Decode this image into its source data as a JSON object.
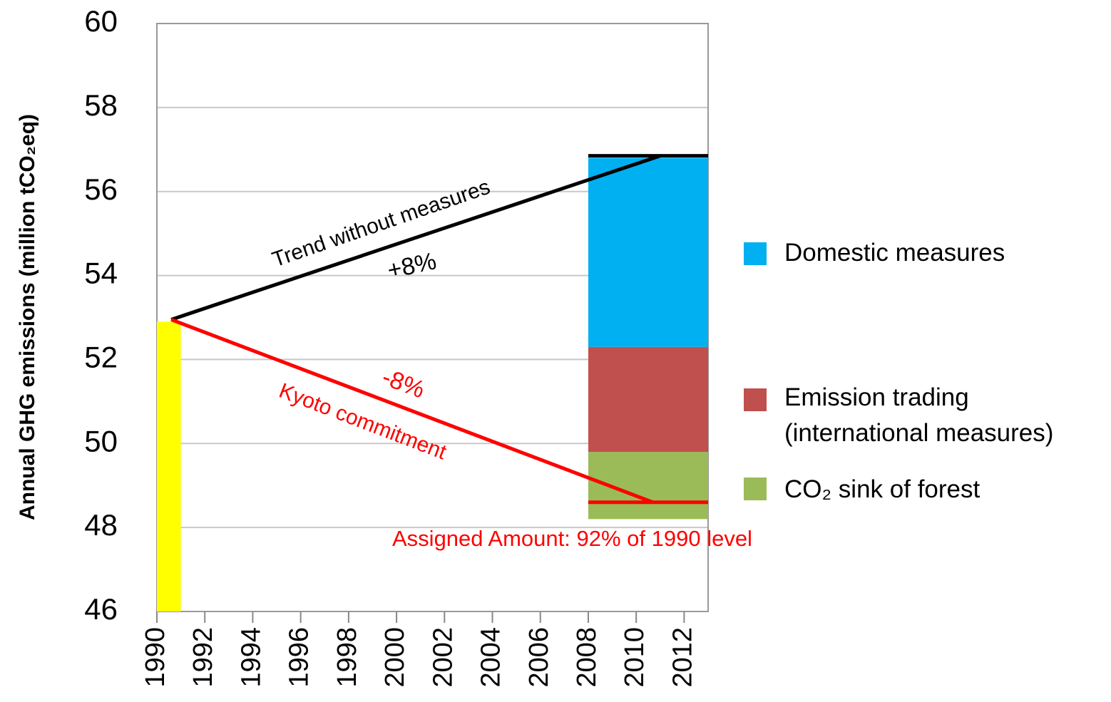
{
  "chart_data": {
    "type": "bar",
    "y_label": "Annual GHG emissions (million tCO₂eq)",
    "xlim": [
      1990,
      2013
    ],
    "xticks": [
      1990,
      1992,
      1994,
      1996,
      1998,
      2000,
      2002,
      2004,
      2006,
      2008,
      2010,
      2012
    ],
    "ylim": [
      46,
      60
    ],
    "yticks": [
      46,
      48,
      50,
      52,
      54,
      56,
      58,
      60
    ],
    "grid": true,
    "bar_1990": {
      "x": [
        1990,
        1991
      ],
      "value": 52.9,
      "color": "#ffff00"
    },
    "stack": {
      "x": [
        2008,
        2013
      ],
      "base": 48.2,
      "series": [
        {
          "name": "CO₂ sink of forest",
          "color": "#9bbb59",
          "value": 1.6
        },
        {
          "name": "Emission trading\n(international measures)",
          "color": "#c0504d",
          "value": 2.5
        },
        {
          "name": "Domestic measures",
          "color": "#00b0f0",
          "value": 4.5
        }
      ]
    },
    "lines": [
      {
        "color": "#000000",
        "x": [
          1990.6,
          2011
        ],
        "values": [
          52.95,
          56.85
        ]
      },
      {
        "color": "#000000",
        "x": [
          2008,
          2013
        ],
        "values": [
          56.85,
          56.85
        ]
      },
      {
        "color": "#ff0000",
        "x": [
          1990.6,
          2010.7
        ],
        "values": [
          52.95,
          48.6
        ]
      },
      {
        "color": "#ff0000",
        "x": [
          2008,
          2013
        ],
        "values": [
          48.6,
          48.6
        ]
      }
    ],
    "annotations": [
      {
        "text": "Trend without measures",
        "color": "#000000"
      },
      {
        "text": "+8%",
        "color": "#000000"
      },
      {
        "text": "-8%",
        "color": "#ff0000"
      },
      {
        "text": "Kyoto commitment",
        "color": "#ff0000"
      },
      {
        "text": "Assigned Amount: 92% of 1990 level",
        "color": "#ff0000"
      }
    ]
  }
}
